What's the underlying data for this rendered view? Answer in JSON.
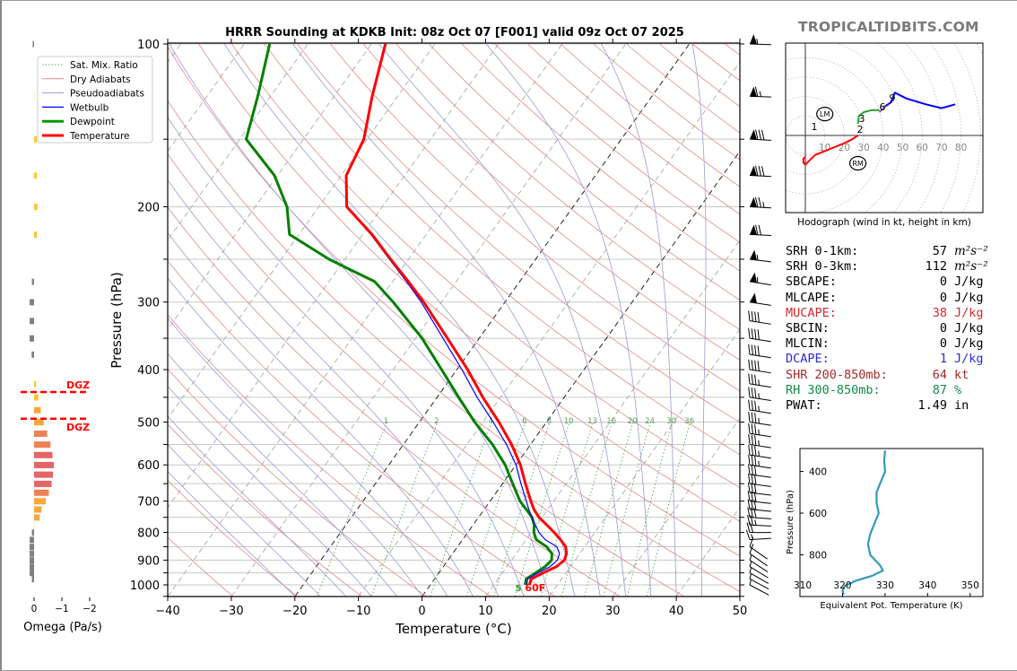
{
  "watermark": "TROPICALTIDBITS.COM",
  "chart_data": [
    {
      "id": "skewt",
      "type": "line",
      "title": "HRRR Sounding at KDKB Init: 08z Oct 07 [F001] valid 09z Oct 07 2025",
      "xlabel": "Temperature (°C)",
      "ylabel": "Pressure (hPa)",
      "xlim": [
        -40,
        50
      ],
      "ylim": [
        1050,
        100
      ],
      "xticks": [
        -40,
        -30,
        -20,
        -10,
        0,
        10,
        20,
        30,
        40,
        50
      ],
      "yticks": [
        100,
        200,
        300,
        400,
        500,
        600,
        700,
        800,
        900,
        1000
      ],
      "grid": true,
      "legend_position": "top-left",
      "legend": [
        "Sat. Mix. Ratio",
        "Dry Adiabats",
        "Pseudoadiabats",
        "Wetbulb",
        "Dewpoint",
        "Temperature"
      ],
      "mixing_ratio_labels": [
        "1",
        "2",
        "4",
        "6",
        "8",
        "10",
        "13",
        "16",
        "20",
        "24",
        "30",
        "36"
      ],
      "surface_temp_label": "60F",
      "surface_dewpoint_label": "5",
      "series": [
        {
          "name": "Temperature",
          "color": "#ff0000",
          "pressure": [
            1000,
            975,
            950,
            925,
            900,
            875,
            850,
            825,
            800,
            775,
            750,
            725,
            700,
            650,
            600,
            550,
            500,
            450,
            400,
            350,
            300,
            275,
            250,
            225,
            200,
            175,
            150,
            125,
            100
          ],
          "values": [
            15.6,
            15.2,
            16.4,
            17.8,
            18.3,
            17.9,
            17.0,
            15.4,
            13.6,
            11.6,
            9.5,
            7.8,
            6.4,
            3.6,
            0.7,
            -3.0,
            -7.5,
            -12.8,
            -18.3,
            -25.0,
            -32.8,
            -37.5,
            -42.8,
            -48.5,
            -55.6,
            -59.2,
            -60.5,
            -64.0,
            -67.8
          ]
        },
        {
          "name": "Wetbulb",
          "color": "#0000ff",
          "pressure": [
            1000,
            975,
            950,
            925,
            900,
            875,
            850,
            825,
            800,
            775,
            750,
            725,
            700,
            650,
            600,
            550,
            500,
            450,
            400,
            350,
            300,
            275,
            250,
            225,
            200,
            175,
            150,
            125,
            100
          ],
          "values": [
            15.2,
            14.6,
            15.6,
            16.8,
            17.2,
            16.8,
            15.6,
            13.0,
            11.2,
            9.8,
            8.4,
            7.0,
            5.7,
            2.9,
            0.0,
            -3.8,
            -8.4,
            -13.7,
            -19.2,
            -25.7,
            -33.2,
            -37.8,
            -43.0,
            -48.7,
            -55.7,
            -59.3,
            -60.6,
            -64.1,
            -67.9
          ]
        },
        {
          "name": "Dewpoint",
          "color": "#008000",
          "pressure": [
            1000,
            975,
            950,
            925,
            900,
            875,
            850,
            825,
            800,
            775,
            750,
            725,
            700,
            650,
            600,
            550,
            500,
            450,
            400,
            350,
            300,
            275,
            250,
            225,
            200,
            175,
            150,
            125,
            100
          ],
          "values": [
            14.9,
            14.4,
            15.2,
            16.0,
            16.3,
            15.6,
            14.0,
            11.6,
            10.4,
            9.6,
            8.4,
            6.6,
            4.7,
            1.6,
            -1.7,
            -6.0,
            -11.3,
            -16.6,
            -22.4,
            -29.0,
            -37.6,
            -42.8,
            -52.5,
            -61.5,
            -65.0,
            -70.5,
            -79.0,
            -82.0,
            -86.0
          ]
        }
      ]
    },
    {
      "id": "omega",
      "type": "bar",
      "xlabel": "Omega (Pa/s)",
      "xticks": [
        "0",
        "−1",
        "−2"
      ],
      "xlim": [
        0.3,
        -2
      ],
      "dgz_label": "DGZ",
      "dgz_pressure": [
        440,
        493
      ],
      "pressure": [
        100,
        125,
        150,
        175,
        200,
        225,
        250,
        275,
        300,
        325,
        350,
        375,
        400,
        425,
        450,
        475,
        500,
        525,
        550,
        575,
        600,
        625,
        650,
        675,
        700,
        725,
        750,
        775,
        800,
        825,
        850,
        875,
        900,
        925,
        950,
        975
      ],
      "values": [
        0.05,
        -0.01,
        -0.1,
        -0.1,
        -0.12,
        -0.1,
        0.0,
        0.08,
        0.16,
        0.16,
        0.16,
        0.09,
        0.0,
        -0.07,
        -0.15,
        -0.24,
        -0.35,
        -0.47,
        -0.59,
        -0.66,
        -0.71,
        -0.68,
        -0.63,
        -0.53,
        -0.42,
        -0.27,
        -0.2,
        -0.01,
        0.08,
        0.16,
        0.16,
        0.16,
        0.16,
        0.16,
        0.16,
        0.08
      ]
    },
    {
      "id": "hodograph",
      "type": "line",
      "caption": "Hodograph (wind in kt, height in km)",
      "ring_labels": [
        "10",
        "20",
        "30",
        "40",
        "50",
        "60",
        "70",
        "80"
      ],
      "markers": [
        "LM",
        "RM"
      ],
      "height_labels": [
        "1",
        "2",
        "3",
        "6",
        "9"
      ],
      "segments": [
        {
          "name": "0-3km",
          "color": "#ff0000",
          "u": [
            0,
            -1,
            -1,
            0,
            2,
            5,
            10,
            15,
            20,
            24,
            27
          ],
          "v": [
            -11,
            -12,
            -14,
            -15,
            -13,
            -10,
            -8,
            -6,
            -4,
            -2,
            0
          ]
        },
        {
          "name": "3-6km",
          "color": "#2ca02c",
          "u": [
            27,
            27.5,
            30,
            34,
            38
          ],
          "v": [
            6,
            10,
            12,
            13,
            13
          ]
        },
        {
          "name": "6-9km",
          "color": "#9b59b6",
          "u": [
            38,
            41
          ],
          "v": [
            12,
            15
          ]
        },
        {
          "name": "9km+",
          "color": "#0000ff",
          "u": [
            41,
            44,
            46,
            52,
            62,
            70,
            77
          ],
          "v": [
            15,
            17,
            22,
            19,
            16,
            14,
            16
          ]
        }
      ],
      "lm": {
        "u": 10,
        "v": 11
      },
      "rm": {
        "u": 27,
        "v": -8
      }
    },
    {
      "id": "theta-e",
      "type": "line",
      "xlabel": "Equivalent Pot. Temperature (K)",
      "ylabel": "Pressure (hPa)",
      "xlim": [
        310,
        353
      ],
      "xticks": [
        "310",
        "320",
        "330",
        "340",
        "350"
      ],
      "yticks": [
        "400",
        "600",
        "800"
      ],
      "color": "#3399bb",
      "pressure": [
        300,
        350,
        400,
        450,
        500,
        550,
        600,
        650,
        700,
        750,
        800,
        850,
        875,
        900,
        925,
        950,
        975,
        990
      ],
      "values": [
        330.0,
        329.8,
        330.0,
        329.0,
        328.0,
        328.0,
        328.5,
        327.5,
        326.5,
        326.0,
        326.5,
        328.8,
        329.5,
        327.0,
        323.0,
        320.5,
        320.0,
        320.3
      ]
    }
  ],
  "stats": [
    {
      "label": "SRH 0-1km:",
      "value": "57",
      "unit": "m²s⁻²",
      "color": "#000000"
    },
    {
      "label": "SRH 0-3km:",
      "value": "112",
      "unit": "m²s⁻²",
      "color": "#000000"
    },
    {
      "label": "SBCAPE:",
      "value": "0",
      "unit": "J/kg",
      "color": "#000000"
    },
    {
      "label": "MLCAPE:",
      "value": "0",
      "unit": "J/kg",
      "color": "#000000"
    },
    {
      "label": "MUCAPE:",
      "value": "38",
      "unit": "J/kg",
      "color": "#d62728"
    },
    {
      "label": "SBCIN:",
      "value": "0",
      "unit": "J/kg",
      "color": "#000000"
    },
    {
      "label": "MLCIN:",
      "value": "0",
      "unit": "J/kg",
      "color": "#000000"
    },
    {
      "label": "DCAPE:",
      "value": "1",
      "unit": "J/kg",
      "color": "#2a2ad6"
    },
    {
      "label": "SHR 200-850mb:",
      "value": "64",
      "unit": "kt",
      "color": "#a52a2a"
    },
    {
      "label": "RH 300-850mb:",
      "value": "87",
      "unit": "%",
      "color": "#138a4a"
    },
    {
      "label": "PWAT:",
      "value": "1.49",
      "unit": "in",
      "color": "#000000"
    }
  ],
  "wind_barbs": {
    "pressure": [
      100,
      125,
      150,
      175,
      200,
      225,
      250,
      275,
      300,
      325,
      350,
      375,
      400,
      425,
      450,
      475,
      500,
      525,
      550,
      575,
      600,
      625,
      650,
      675,
      700,
      725,
      750,
      775,
      800,
      825,
      850,
      875,
      900,
      925,
      950,
      975,
      1000
    ],
    "speed_kt": [
      55,
      65,
      80,
      80,
      75,
      70,
      55,
      55,
      50,
      40,
      40,
      40,
      40,
      35,
      35,
      35,
      35,
      35,
      35,
      35,
      35,
      30,
      30,
      30,
      30,
      30,
      30,
      25,
      20,
      15,
      10,
      10,
      5,
      5,
      5,
      5,
      5
    ],
    "direction_deg": [
      265,
      265,
      262,
      262,
      262,
      262,
      250,
      245,
      245,
      245,
      245,
      245,
      245,
      245,
      245,
      245,
      245,
      245,
      245,
      245,
      245,
      248,
      248,
      250,
      252,
      255,
      258,
      262,
      270,
      280,
      170,
      170,
      175,
      180,
      185,
      190,
      190
    ]
  }
}
